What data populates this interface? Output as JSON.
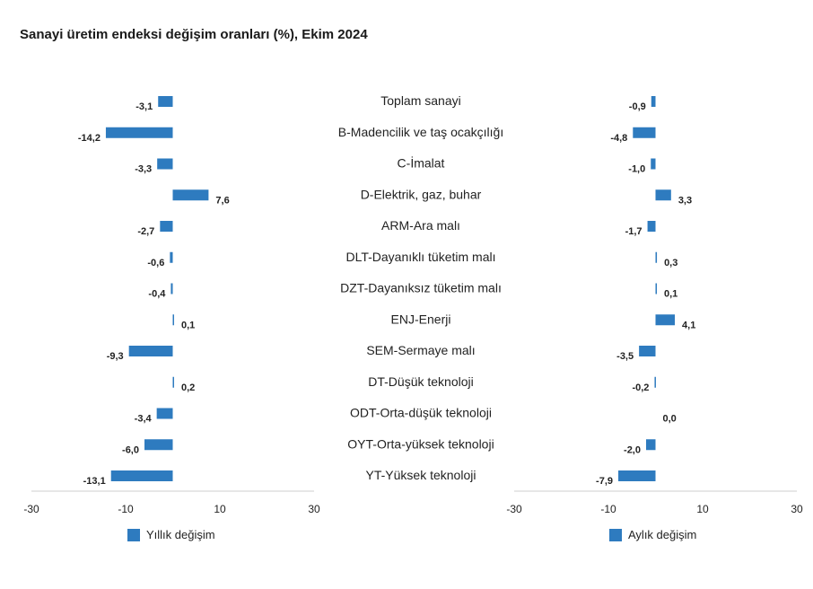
{
  "chart_data": {
    "type": "bar",
    "orientation": "horizontal",
    "title": "Sanayi üretim endeksi değişim oranları (%), Ekim 2024",
    "categories": [
      "Toplam sanayi",
      "B-Madencilik ve taş ocakçılığı",
      "C-İmalat",
      "D-Elektrik, gaz, buhar",
      "ARM-Ara malı",
      "DLT-Dayanıklı tüketim malı",
      "DZT-Dayanıksız tüketim malı",
      "ENJ-Enerji",
      "SEM-Sermaye malı",
      "DT-Düşük teknoloji",
      "ODT-Orta-düşük teknoloji",
      "OYT-Orta-yüksek teknoloji",
      "YT-Yüksek teknoloji"
    ],
    "series": [
      {
        "name": "Yıllık değişim",
        "values": [
          -3.1,
          -14.2,
          -3.3,
          7.6,
          -2.7,
          -0.6,
          -0.4,
          0.1,
          -9.3,
          0.2,
          -3.4,
          -6.0,
          -13.1
        ],
        "labels": [
          "-3,1",
          "-14,2",
          "-3,3",
          "7,6",
          "-2,7",
          "-0,6",
          "-0,4",
          "0,1",
          "-9,3",
          "0,2",
          "-3,4",
          "-6,0",
          "-13,1"
        ]
      },
      {
        "name": "Aylık değişim",
        "values": [
          -0.9,
          -4.8,
          -1.0,
          3.3,
          -1.7,
          0.3,
          0.1,
          4.1,
          -3.5,
          -0.2,
          0.0,
          -2.0,
          -7.9
        ],
        "labels": [
          "-0,9",
          "-4,8",
          "-1,0",
          "3,3",
          "-1,7",
          "0,3",
          "0,1",
          "4,1",
          "-3,5",
          "-0,2",
          "0,0",
          "-2,0",
          "-7,9"
        ]
      }
    ],
    "xlim": [
      -30,
      30
    ],
    "xticks": [
      "-30",
      "-10",
      "10",
      "30"
    ],
    "grid": false,
    "color": "#2e7bbf",
    "legend_position": "bottom-left"
  }
}
